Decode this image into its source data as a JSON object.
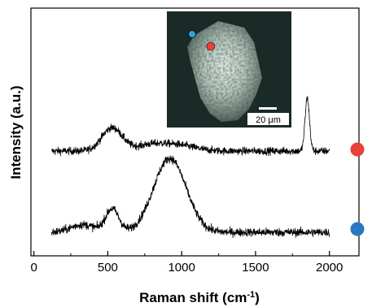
{
  "chart_data": {
    "type": "line",
    "xlabel": "Raman shift (cm",
    "xlabel_sup": "-1",
    "xlabel_close": ")",
    "ylabel": "Intensity (a.u.)",
    "xlim": [
      -20,
      2200
    ],
    "xticks": [
      0,
      500,
      1000,
      1500,
      2000
    ],
    "y_ticks_labeled": false,
    "grid": false,
    "series": [
      {
        "marker_color": "#e8403a",
        "x_range": [
          120,
          2000
        ],
        "baseline": 0.0,
        "peaks": [
          {
            "center": 530,
            "width": 70,
            "height": 0.55
          },
          {
            "center": 780,
            "width": 90,
            "height": 0.12
          },
          {
            "center": 960,
            "width": 120,
            "height": 0.15
          },
          {
            "center": 1850,
            "width": 15,
            "height": 1.25
          }
        ],
        "noise": 0.09
      },
      {
        "marker_color": "#2a78c2",
        "x_range": [
          120,
          2000
        ],
        "baseline": 0.0,
        "peaks": [
          {
            "center": 530,
            "width": 45,
            "height": 0.55
          },
          {
            "center": 330,
            "width": 80,
            "height": 0.18
          },
          {
            "center": 920,
            "width": 110,
            "height": 1.75
          }
        ],
        "noise": 0.1
      }
    ],
    "inset": {
      "scale_bar_label": "20 μm",
      "marker_colors": [
        "#2ba5d8",
        "#e8403a"
      ]
    }
  }
}
